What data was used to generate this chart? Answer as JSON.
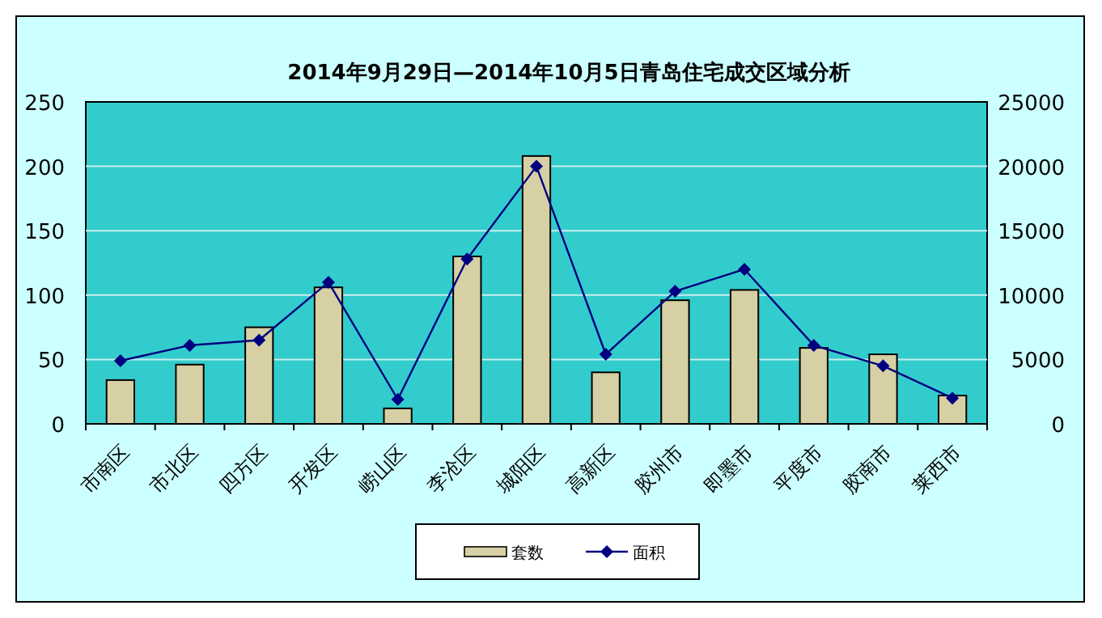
{
  "chart_data": {
    "type": "bar",
    "title": "2014年9月29日—2014年10月5日青岛住宅成交区域分析",
    "categories": [
      "市南区",
      "市北区",
      "四方区",
      "开发区",
      "崂山区",
      "李沧区",
      "城阳区",
      "高新区",
      "胶州市",
      "即墨市",
      "平度市",
      "胶南市",
      "莱西市"
    ],
    "series": [
      {
        "name": "套数",
        "color": "#d6d0a4",
        "values": [
          34,
          46,
          75,
          106,
          12,
          130,
          208,
          40,
          96,
          104,
          59,
          54,
          22
        ]
      },
      {
        "name": "面积",
        "type": "line",
        "axis": "y2",
        "color": "#000080",
        "values": [
          4900,
          6100,
          6500,
          11000,
          1900,
          12800,
          20000,
          5400,
          10300,
          12000,
          6100,
          4500,
          2000
        ]
      }
    ],
    "ylim": [
      0,
      250
    ],
    "yticks": [
      0,
      50,
      100,
      150,
      200,
      250
    ],
    "y2lim": [
      0,
      25000
    ],
    "y2ticks": [
      0,
      5000,
      10000,
      15000,
      20000,
      25000
    ],
    "grid": "y",
    "legend": "bottom",
    "marker": "diamond"
  }
}
